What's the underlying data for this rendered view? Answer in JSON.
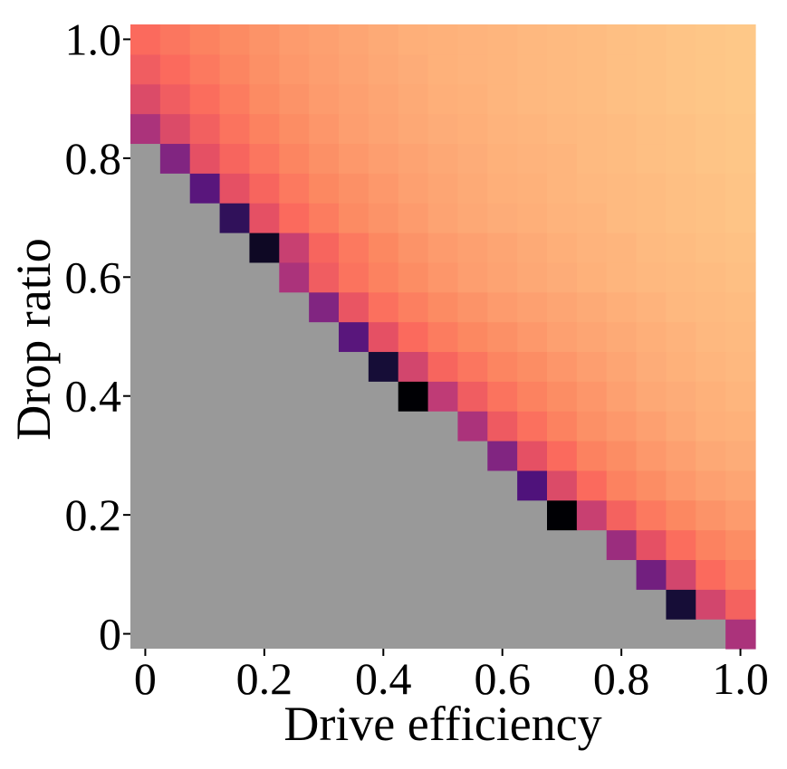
{
  "chart_data": {
    "type": "heatmap",
    "title": "",
    "xlabel": "Drive efficiency",
    "ylabel": "Drop ratio",
    "xlim": [
      0,
      1.0
    ],
    "ylim": [
      0,
      1.0
    ],
    "x_ticks": [
      {
        "value": 0,
        "label": "0"
      },
      {
        "value": 0.2,
        "label": "0.2"
      },
      {
        "value": 0.4,
        "label": "0.4"
      },
      {
        "value": 0.6,
        "label": "0.6"
      },
      {
        "value": 0.8,
        "label": "0.8"
      },
      {
        "value": 1.0,
        "label": "1.0"
      }
    ],
    "y_ticks": [
      {
        "value": 0,
        "label": "0"
      },
      {
        "value": 0.2,
        "label": "0.2"
      },
      {
        "value": 0.4,
        "label": "0.4"
      },
      {
        "value": 0.6,
        "label": "0.6"
      },
      {
        "value": 0.8,
        "label": "0.8"
      },
      {
        "value": 1.0,
        "label": "1.0"
      }
    ],
    "grid": false,
    "legend": "none",
    "colormap": "magma",
    "missing_color": "#999999",
    "x_centers": [
      0.0,
      0.05,
      0.1,
      0.15,
      0.2,
      0.25,
      0.3,
      0.35,
      0.4,
      0.45,
      0.5,
      0.55,
      0.6,
      0.65,
      0.7,
      0.75,
      0.8,
      0.85,
      0.9,
      0.95,
      1.0
    ],
    "y_centers": [
      0.0,
      0.05,
      0.1,
      0.15,
      0.2,
      0.25,
      0.3,
      0.35,
      0.4,
      0.45,
      0.5,
      0.55,
      0.6,
      0.65,
      0.7,
      0.75,
      0.8,
      0.85,
      0.9,
      0.95,
      1.0
    ],
    "value_range": [
      0,
      1
    ],
    "note_values": "cell values are relative intensities on the colormap (0 = darkest); cells with null are empty (gray)",
    "values": [
      [
        null,
        null,
        null,
        null,
        null,
        null,
        null,
        null,
        null,
        null,
        null,
        null,
        null,
        null,
        null,
        null,
        null,
        null,
        null,
        null,
        0.38
      ],
      [
        null,
        null,
        null,
        null,
        null,
        null,
        null,
        null,
        null,
        null,
        null,
        null,
        null,
        null,
        null,
        null,
        null,
        null,
        0.08,
        0.46,
        0.57
      ],
      [
        null,
        null,
        null,
        null,
        null,
        null,
        null,
        null,
        null,
        null,
        null,
        null,
        null,
        null,
        null,
        null,
        null,
        0.27,
        0.46,
        0.6,
        0.67
      ],
      [
        null,
        null,
        null,
        null,
        null,
        null,
        null,
        null,
        null,
        null,
        null,
        null,
        null,
        null,
        null,
        null,
        0.35,
        0.5,
        0.61,
        0.68,
        0.72
      ],
      [
        null,
        null,
        null,
        null,
        null,
        null,
        null,
        null,
        null,
        null,
        null,
        null,
        null,
        null,
        0.0,
        0.44,
        0.57,
        0.65,
        0.7,
        0.74,
        0.77
      ],
      [
        null,
        null,
        null,
        null,
        null,
        null,
        null,
        null,
        null,
        null,
        null,
        null,
        null,
        0.2,
        0.48,
        0.6,
        0.68,
        0.72,
        0.76,
        0.79,
        0.81
      ],
      [
        null,
        null,
        null,
        null,
        null,
        null,
        null,
        null,
        null,
        null,
        null,
        null,
        0.3,
        0.5,
        0.6,
        0.68,
        0.72,
        0.76,
        0.79,
        0.82,
        0.84
      ],
      [
        null,
        null,
        null,
        null,
        null,
        null,
        null,
        null,
        null,
        null,
        null,
        0.38,
        0.54,
        0.62,
        0.68,
        0.73,
        0.76,
        0.79,
        0.82,
        0.85,
        0.86
      ],
      [
        null,
        null,
        null,
        null,
        null,
        null,
        null,
        null,
        null,
        0.0,
        0.42,
        0.55,
        0.63,
        0.68,
        0.72,
        0.75,
        0.79,
        0.82,
        0.84,
        0.86,
        0.88
      ],
      [
        null,
        null,
        null,
        null,
        null,
        null,
        null,
        null,
        0.08,
        0.46,
        0.58,
        0.64,
        0.69,
        0.72,
        0.75,
        0.78,
        0.81,
        0.84,
        0.86,
        0.88,
        0.89
      ],
      [
        null,
        null,
        null,
        null,
        null,
        null,
        null,
        0.22,
        0.5,
        0.6,
        0.66,
        0.7,
        0.73,
        0.76,
        0.79,
        0.81,
        0.83,
        0.85,
        0.87,
        0.89,
        0.9
      ],
      [
        null,
        null,
        null,
        null,
        null,
        null,
        0.3,
        0.52,
        0.62,
        0.67,
        0.71,
        0.74,
        0.77,
        0.79,
        0.81,
        0.83,
        0.85,
        0.87,
        0.89,
        0.9,
        0.91
      ],
      [
        null,
        null,
        null,
        null,
        null,
        0.38,
        0.55,
        0.63,
        0.68,
        0.72,
        0.75,
        0.78,
        0.8,
        0.82,
        0.84,
        0.86,
        0.88,
        0.89,
        0.9,
        0.91,
        0.92
      ],
      [
        null,
        null,
        null,
        null,
        0.05,
        0.44,
        0.58,
        0.65,
        0.7,
        0.74,
        0.77,
        0.79,
        0.81,
        0.83,
        0.85,
        0.87,
        0.88,
        0.9,
        0.91,
        0.92,
        0.93
      ],
      [
        null,
        null,
        null,
        0.14,
        0.5,
        0.6,
        0.66,
        0.71,
        0.74,
        0.77,
        0.8,
        0.82,
        0.84,
        0.85,
        0.87,
        0.88,
        0.9,
        0.91,
        0.92,
        0.93,
        0.94
      ],
      [
        null,
        null,
        0.22,
        0.5,
        0.58,
        0.65,
        0.7,
        0.73,
        0.76,
        0.79,
        0.81,
        0.83,
        0.85,
        0.86,
        0.88,
        0.89,
        0.9,
        0.91,
        0.92,
        0.93,
        0.94
      ],
      [
        null,
        0.3,
        0.5,
        0.58,
        0.64,
        0.69,
        0.73,
        0.76,
        0.78,
        0.8,
        0.82,
        0.84,
        0.86,
        0.87,
        0.88,
        0.9,
        0.91,
        0.92,
        0.93,
        0.94,
        0.95
      ],
      [
        0.38,
        0.48,
        0.56,
        0.63,
        0.68,
        0.72,
        0.75,
        0.78,
        0.8,
        0.82,
        0.84,
        0.85,
        0.87,
        0.88,
        0.89,
        0.9,
        0.91,
        0.92,
        0.93,
        0.94,
        0.95
      ],
      [
        0.48,
        0.55,
        0.61,
        0.66,
        0.71,
        0.74,
        0.77,
        0.79,
        0.81,
        0.83,
        0.85,
        0.86,
        0.88,
        0.89,
        0.9,
        0.91,
        0.92,
        0.93,
        0.94,
        0.95,
        0.96
      ],
      [
        0.55,
        0.6,
        0.65,
        0.69,
        0.73,
        0.76,
        0.78,
        0.8,
        0.82,
        0.84,
        0.86,
        0.87,
        0.88,
        0.89,
        0.9,
        0.91,
        0.92,
        0.93,
        0.94,
        0.95,
        0.96
      ],
      [
        0.6,
        0.64,
        0.68,
        0.71,
        0.74,
        0.77,
        0.79,
        0.81,
        0.83,
        0.85,
        0.86,
        0.87,
        0.88,
        0.89,
        0.9,
        0.91,
        0.92,
        0.93,
        0.94,
        0.95,
        0.96
      ]
    ]
  }
}
